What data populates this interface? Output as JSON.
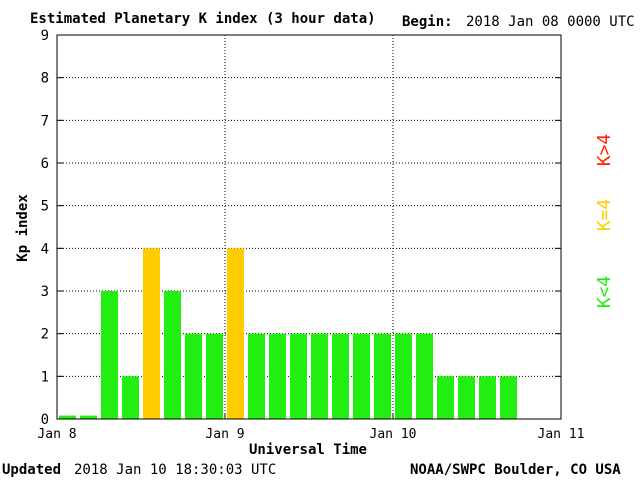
{
  "header": {
    "title": "Estimated Planetary K index (3 hour data)",
    "begin_label": "Begin:",
    "begin_value": "2018 Jan 08 0000 UTC"
  },
  "footer": {
    "updated_label": "Updated",
    "updated_value": "2018 Jan 10 18:30:03 UTC",
    "credit": "NOAA/SWPC Boulder, CO USA"
  },
  "legend": {
    "gt4": "K>4",
    "eq4": "K=4",
    "lt4": "K<4"
  },
  "colors": {
    "lt4": "#22ee11",
    "eq4": "#ffcc00",
    "gt4": "#ff2200",
    "axis": "#000000",
    "grid": "#000000"
  },
  "chart_data": {
    "type": "bar",
    "title": "Estimated Planetary K index (3 hour data)",
    "xlabel": "Universal Time",
    "ylabel": "Kp index",
    "ylim": [
      0,
      9
    ],
    "yticks": [
      "0",
      "1",
      "2",
      "3",
      "4",
      "5",
      "6",
      "7",
      "8",
      "9"
    ],
    "xticks": [
      "Jan 8",
      "Jan 9",
      "Jan 10",
      "Jan 11"
    ],
    "interval_hours": 3,
    "grid": true,
    "legend_position": "right",
    "bars": [
      0,
      0,
      3,
      1,
      4,
      3,
      2,
      2,
      4,
      2,
      2,
      2,
      2,
      2,
      2,
      2,
      2,
      2,
      1,
      1,
      1,
      1
    ]
  }
}
